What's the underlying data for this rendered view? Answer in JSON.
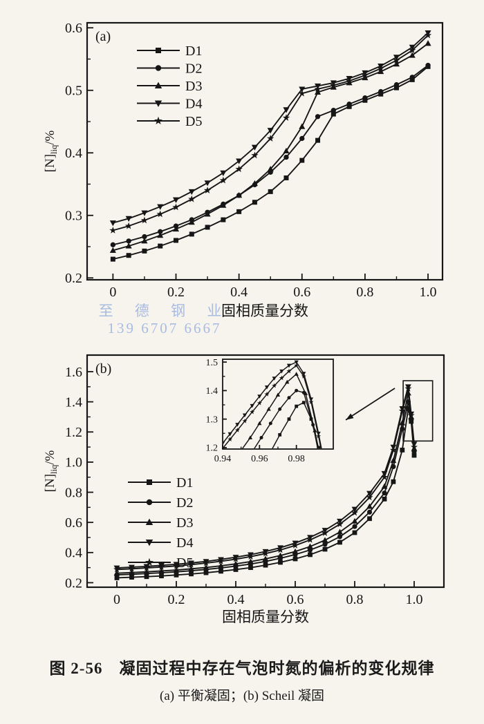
{
  "watermark": {
    "line1": "至 德 钢 业",
    "line2": "139 6707 6667",
    "color": "#9db9e2"
  },
  "caption": {
    "title": "图 2-56　凝固过程中存在气泡时氮的偏析的变化规律",
    "subtitle": "(a) 平衡凝固；(b) Scheil 凝固"
  },
  "colors": {
    "ink": "#161616",
    "paper": "#f7f4ee"
  },
  "chart_data": [
    {
      "type": "line",
      "panel_label": "(a)",
      "xlabel": "固相质量分数",
      "ylabel": "[N]liq/%",
      "ylabel_parts": {
        "bracket": "[N]",
        "sub": "liq",
        "unit": "/%"
      },
      "xlim": [
        -0.082,
        1.046
      ],
      "ylim": [
        0.197,
        0.608
      ],
      "x_ticks": [
        0,
        0.2,
        0.4,
        0.6,
        0.8,
        1.0
      ],
      "x_tick_labels": [
        "0",
        "0.2",
        "0.4",
        "0.6",
        "0.8",
        "1.0"
      ],
      "x_minor_step": 0.1,
      "y_ticks": [
        0.2,
        0.3,
        0.4,
        0.5,
        0.6
      ],
      "y_tick_labels": [
        "0.2",
        "0.3",
        "0.4",
        "0.5",
        "0.6"
      ],
      "y_minor_step": 0.05,
      "legend_position": "upper-left",
      "x": [
        0,
        0.05,
        0.1,
        0.15,
        0.2,
        0.25,
        0.3,
        0.35,
        0.4,
        0.45,
        0.5,
        0.55,
        0.6,
        0.65,
        0.7,
        0.75,
        0.8,
        0.85,
        0.9,
        0.95,
        1.0
      ],
      "series": [
        {
          "name": "D1",
          "marker": "square",
          "values": [
            0.23,
            0.236,
            0.243,
            0.251,
            0.26,
            0.27,
            0.281,
            0.293,
            0.306,
            0.321,
            0.338,
            0.36,
            0.388,
            0.42,
            0.462,
            0.474,
            0.484,
            0.494,
            0.504,
            0.517,
            0.538
          ]
        },
        {
          "name": "D2",
          "marker": "circle",
          "values": [
            0.253,
            0.259,
            0.266,
            0.274,
            0.283,
            0.293,
            0.305,
            0.318,
            0.332,
            0.349,
            0.369,
            0.393,
            0.423,
            0.458,
            0.468,
            0.478,
            0.488,
            0.498,
            0.509,
            0.521,
            0.54
          ]
        },
        {
          "name": "D3",
          "marker": "triangle-up",
          "values": [
            0.244,
            0.251,
            0.259,
            0.268,
            0.278,
            0.289,
            0.302,
            0.316,
            0.332,
            0.351,
            0.374,
            0.403,
            0.442,
            0.497,
            0.505,
            0.512,
            0.52,
            0.53,
            0.542,
            0.556,
            0.575
          ]
        },
        {
          "name": "D4",
          "marker": "triangle-down",
          "values": [
            0.288,
            0.295,
            0.304,
            0.314,
            0.325,
            0.338,
            0.352,
            0.368,
            0.387,
            0.409,
            0.436,
            0.469,
            0.502,
            0.507,
            0.512,
            0.519,
            0.528,
            0.539,
            0.553,
            0.569,
            0.592
          ]
        },
        {
          "name": "D5",
          "marker": "star",
          "values": [
            0.276,
            0.283,
            0.292,
            0.302,
            0.313,
            0.326,
            0.34,
            0.356,
            0.374,
            0.396,
            0.423,
            0.456,
            0.495,
            0.502,
            0.508,
            0.515,
            0.524,
            0.535,
            0.548,
            0.564,
            0.588
          ]
        }
      ]
    },
    {
      "type": "line",
      "panel_label": "(b)",
      "xlabel": "固相质量分数",
      "ylabel": "[N]liq/%",
      "ylabel_parts": {
        "bracket": "[N]",
        "sub": "liq",
        "unit": "/%"
      },
      "xlim": [
        -0.1,
        1.1
      ],
      "ylim": [
        0.17,
        1.71
      ],
      "x_ticks": [
        0,
        0.2,
        0.4,
        0.6,
        0.8,
        1.0
      ],
      "x_tick_labels": [
        "0",
        "0.2",
        "0.4",
        "0.6",
        "0.8",
        "1.0"
      ],
      "x_minor_step": 0.1,
      "y_ticks": [
        0.2,
        0.4,
        0.6,
        0.8,
        1.0,
        1.2,
        1.4,
        1.6
      ],
      "y_tick_labels": [
        "0.2",
        "0.4",
        "0.6",
        "0.8",
        "1.0",
        "1.2",
        "1.4",
        "1.6"
      ],
      "y_minor_step": 0.1,
      "legend_position": "center-left",
      "x": [
        0,
        0.05,
        0.1,
        0.15,
        0.2,
        0.25,
        0.3,
        0.35,
        0.4,
        0.45,
        0.5,
        0.55,
        0.6,
        0.65,
        0.7,
        0.75,
        0.8,
        0.85,
        0.9,
        0.93,
        0.96,
        0.98,
        0.99,
        1.0
      ],
      "series": [
        {
          "name": "D1",
          "marker": "square",
          "values": [
            0.232,
            0.236,
            0.24,
            0.245,
            0.251,
            0.258,
            0.266,
            0.276,
            0.287,
            0.3,
            0.316,
            0.335,
            0.358,
            0.386,
            0.422,
            0.468,
            0.532,
            0.625,
            0.755,
            0.87,
            1.08,
            1.355,
            1.27,
            1.045
          ]
        },
        {
          "name": "D2",
          "marker": "circle",
          "values": [
            0.252,
            0.256,
            0.261,
            0.266,
            0.272,
            0.279,
            0.288,
            0.298,
            0.31,
            0.324,
            0.341,
            0.362,
            0.387,
            0.417,
            0.455,
            0.505,
            0.573,
            0.668,
            0.795,
            0.97,
            1.22,
            1.4,
            1.28,
            1.07
          ]
        },
        {
          "name": "D3",
          "marker": "triangle-up",
          "values": [
            0.263,
            0.267,
            0.272,
            0.278,
            0.284,
            0.292,
            0.301,
            0.312,
            0.325,
            0.34,
            0.358,
            0.38,
            0.407,
            0.44,
            0.482,
            0.536,
            0.608,
            0.706,
            0.838,
            1.01,
            1.26,
            1.458,
            1.3,
            1.09
          ]
        },
        {
          "name": "D4",
          "marker": "triangle-down",
          "values": [
            0.298,
            0.303,
            0.308,
            0.315,
            0.322,
            0.331,
            0.341,
            0.354,
            0.369,
            0.386,
            0.407,
            0.432,
            0.463,
            0.501,
            0.548,
            0.609,
            0.688,
            0.793,
            0.925,
            1.1,
            1.355,
            1.5,
            1.32,
            1.12
          ]
        },
        {
          "name": "D5",
          "marker": "star",
          "values": [
            0.288,
            0.292,
            0.298,
            0.304,
            0.311,
            0.32,
            0.33,
            0.342,
            0.356,
            0.373,
            0.393,
            0.417,
            0.447,
            0.484,
            0.529,
            0.588,
            0.664,
            0.766,
            0.9,
            1.08,
            1.34,
            1.488,
            1.31,
            1.1
          ]
        }
      ],
      "annotation": {
        "box_x": [
          0.963,
          1.062
        ],
        "box_y": [
          1.14,
          1.54
        ],
        "arrow_from": [
          0.935,
          1.49
        ],
        "arrow_to": [
          0.77,
          1.28
        ]
      },
      "inset": {
        "xlim": [
          0.94,
          1.0
        ],
        "ylim": [
          1.195,
          1.51
        ],
        "x_ticks": [
          0.94,
          0.96,
          0.98
        ],
        "x_tick_labels": [
          "0.94",
          "0.96",
          "0.98"
        ],
        "x_minor_step": 0.01,
        "y_ticks": [
          1.2,
          1.3,
          1.4,
          1.5
        ],
        "y_tick_labels": [
          "1.2",
          "1.3",
          "1.4",
          "1.5"
        ],
        "y_minor_step": 0.05,
        "series": [
          {
            "name": "D1",
            "marker": "square",
            "points": [
              [
                0.966,
                1.185
              ],
              [
                0.971,
                1.245
              ],
              [
                0.976,
                1.3
              ],
              [
                0.98,
                1.345
              ],
              [
                0.984,
                1.358
              ],
              [
                0.988,
                1.3
              ],
              [
                0.992,
                1.2
              ],
              [
                0.995,
                1.1
              ]
            ]
          },
          {
            "name": "D2",
            "marker": "circle",
            "points": [
              [
                0.956,
                1.185
              ],
              [
                0.961,
                1.235
              ],
              [
                0.966,
                1.285
              ],
              [
                0.971,
                1.335
              ],
              [
                0.976,
                1.375
              ],
              [
                0.98,
                1.4
              ],
              [
                0.984,
                1.393
              ],
              [
                0.989,
                1.28
              ],
              [
                0.993,
                1.15
              ]
            ]
          },
          {
            "name": "D3",
            "marker": "triangle-up",
            "points": [
              [
                0.95,
                1.19
              ],
              [
                0.955,
                1.235
              ],
              [
                0.96,
                1.285
              ],
              [
                0.965,
                1.335
              ],
              [
                0.97,
                1.385
              ],
              [
                0.975,
                1.43
              ],
              [
                0.98,
                1.458
              ],
              [
                0.985,
                1.39
              ],
              [
                0.99,
                1.26
              ],
              [
                0.994,
                1.13
              ]
            ]
          },
          {
            "name": "D4",
            "marker": "triangle-down",
            "points": [
              [
                0.94,
                1.215
              ],
              [
                0.944,
                1.248
              ],
              [
                0.948,
                1.281
              ],
              [
                0.952,
                1.314
              ],
              [
                0.956,
                1.347
              ],
              [
                0.96,
                1.38
              ],
              [
                0.964,
                1.412
              ],
              [
                0.968,
                1.443
              ],
              [
                0.972,
                1.468
              ],
              [
                0.976,
                1.488
              ],
              [
                0.98,
                1.5
              ],
              [
                0.984,
                1.46
              ],
              [
                0.988,
                1.37
              ],
              [
                0.992,
                1.25
              ],
              [
                0.995,
                1.15
              ]
            ]
          },
          {
            "name": "D5",
            "marker": "star",
            "points": [
              [
                0.94,
                1.197
              ],
              [
                0.944,
                1.229
              ],
              [
                0.948,
                1.261
              ],
              [
                0.952,
                1.293
              ],
              [
                0.956,
                1.325
              ],
              [
                0.96,
                1.356
              ],
              [
                0.964,
                1.387
              ],
              [
                0.968,
                1.417
              ],
              [
                0.972,
                1.444
              ],
              [
                0.976,
                1.468
              ],
              [
                0.98,
                1.488
              ],
              [
                0.984,
                1.45
              ],
              [
                0.988,
                1.36
              ],
              [
                0.992,
                1.24
              ],
              [
                0.995,
                1.14
              ]
            ]
          }
        ]
      }
    }
  ]
}
